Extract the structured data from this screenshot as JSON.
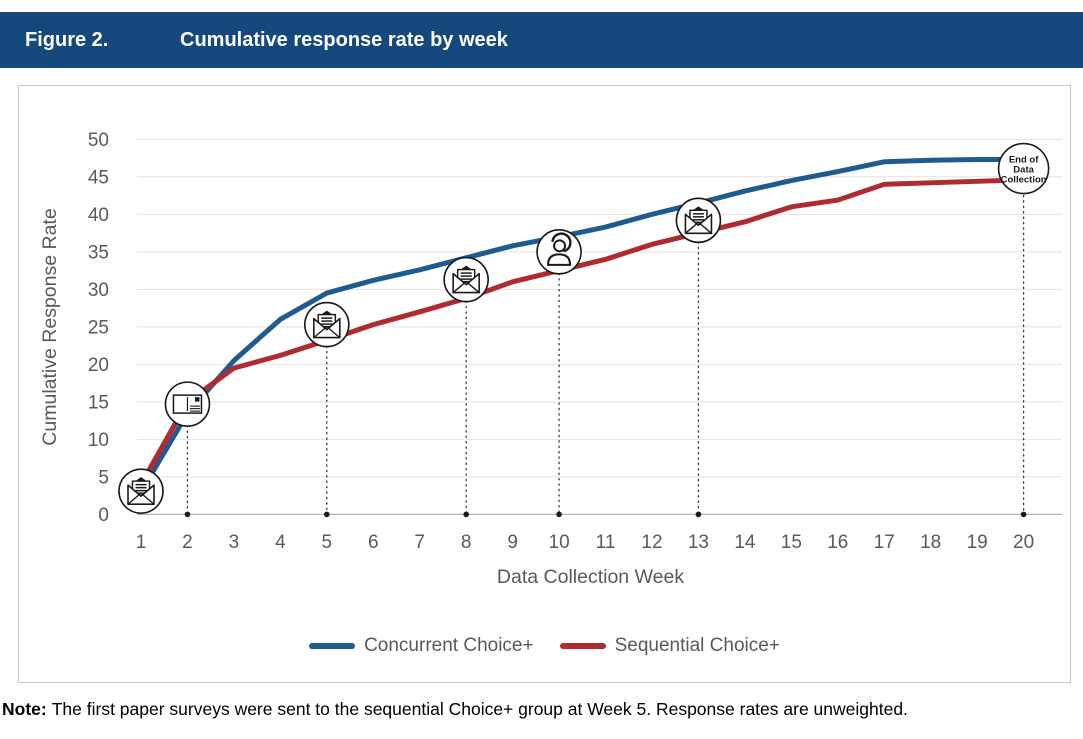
{
  "header": {
    "figure_label": "Figure 2.",
    "title": "Cumulative response rate by week",
    "bg_color": "#15497d",
    "text_color": "#ffffff"
  },
  "chart_data": {
    "type": "line",
    "title": "Cumulative response rate by week",
    "xlabel": "Data Collection Week",
    "ylabel": "Cumulative Response Rate",
    "x": [
      1,
      2,
      3,
      4,
      5,
      6,
      7,
      8,
      9,
      10,
      11,
      12,
      13,
      14,
      15,
      16,
      17,
      18,
      19,
      20
    ],
    "ylim": [
      0,
      50
    ],
    "yticks": [
      0,
      5,
      10,
      15,
      20,
      25,
      30,
      35,
      40,
      45,
      50
    ],
    "grid": true,
    "legend_position": "bottom",
    "series": [
      {
        "name": "Concurrent Choice+",
        "color": "#1f5b8d",
        "values": [
          3,
          13.5,
          20.5,
          26,
          29.5,
          31.2,
          32.6,
          34.2,
          35.8,
          37,
          38.3,
          40,
          41.5,
          43.1,
          44.5,
          45.7,
          47,
          47.2,
          47.3,
          47.3
        ]
      },
      {
        "name": "Sequential Choice+",
        "color": "#b02a31",
        "values": [
          4,
          15,
          19.5,
          21.2,
          23.2,
          25.3,
          27,
          28.8,
          31,
          32.5,
          34,
          36,
          37.5,
          39,
          41,
          41.9,
          44,
          44.2,
          44.4,
          44.6
        ]
      }
    ],
    "event_markers": [
      {
        "week": 1,
        "value": 3.1,
        "icon": "open-envelope-icon",
        "connector": false
      },
      {
        "week": 2,
        "value": 14.7,
        "icon": "postcard-icon",
        "connector": true
      },
      {
        "week": 5,
        "value": 25.3,
        "icon": "open-envelope-icon",
        "connector": true
      },
      {
        "week": 8,
        "value": 31.3,
        "icon": "open-envelope-icon",
        "connector": true
      },
      {
        "week": 10,
        "value": 35.0,
        "icon": "person-headset-icon",
        "connector": true
      },
      {
        "week": 13,
        "value": 39.2,
        "icon": "open-envelope-icon",
        "connector": true
      },
      {
        "week": 20,
        "value": 46.1,
        "icon": "end-of-data-collection-circle",
        "connector": true,
        "label_lines": [
          "End of",
          "Data",
          "Collection"
        ]
      }
    ]
  },
  "legend": {
    "items": [
      {
        "label": "Concurrent Choice+",
        "color": "#1f5b8d"
      },
      {
        "label": "Sequential Choice+",
        "color": "#b02a31"
      }
    ]
  },
  "note": {
    "label": "Note:",
    "text": "The first paper surveys were sent to the sequential Choice+ group at Week 5. Response rates are unweighted."
  }
}
